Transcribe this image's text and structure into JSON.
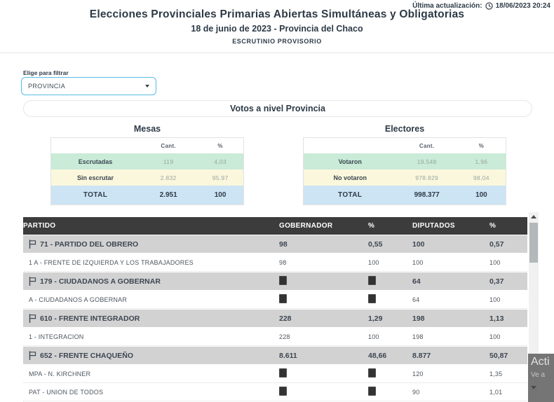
{
  "last_update": {
    "label": "Última actualización:",
    "value": "18/06/2023 20:24"
  },
  "header": {
    "title": "Elecciones Provinciales Primarias Abiertas Simultáneas y Obligatorias",
    "subtitle": "18 de junio de 2023 - Provincia del Chaco",
    "status": "ESCRUTINIO PROVISORIO"
  },
  "filter": {
    "label": "Elige para filtrar",
    "selected_option": "PROVINCIA"
  },
  "section": {
    "title": "Votos a nivel Provincia"
  },
  "summary_tables": [
    {
      "title": "Mesas",
      "columns": [
        "Cant.",
        "%"
      ],
      "rows": [
        {
          "label": "Escrutadas",
          "cant": "119",
          "pct": "4,03",
          "tone": "green"
        },
        {
          "label": "Sin escrutar",
          "cant": "2.832",
          "pct": "95,97",
          "tone": "yellow"
        },
        {
          "label": "TOTAL",
          "cant": "2.951",
          "pct": "100",
          "tone": "total"
        }
      ]
    },
    {
      "title": "Electores",
      "columns": [
        "Cant.",
        "%"
      ],
      "rows": [
        {
          "label": "Votaron",
          "cant": "19.548",
          "pct": "1,96",
          "tone": "green"
        },
        {
          "label": "No votaron",
          "cant": "978.829",
          "pct": "98,04",
          "tone": "yellow"
        },
        {
          "label": "TOTAL",
          "cant": "998.377",
          "pct": "100",
          "tone": "total"
        }
      ]
    }
  ],
  "results_table": {
    "columns": [
      "PARTIDO",
      "GOBERNADOR",
      "%",
      "DIPUTADOS",
      "%"
    ],
    "rows": [
      {
        "type": "party",
        "name": "71 - PARTIDO DEL OBRERO",
        "values": [
          "98",
          "0,55",
          "100",
          "0,57"
        ]
      },
      {
        "type": "list",
        "name": "1 A - FRENTE DE IZQUIERDA Y LOS TRABAJADORES",
        "values": [
          "98",
          "100",
          "100",
          "100"
        ]
      },
      {
        "type": "party",
        "name": "179 - CIUDADANOS A GOBERNAR",
        "values": [
          "■",
          "■",
          "64",
          "0,37"
        ]
      },
      {
        "type": "list",
        "name": "A - CIUDADANOS A GOBERNAR",
        "values": [
          "■",
          "■",
          "64",
          "100"
        ]
      },
      {
        "type": "party",
        "name": "610 - FRENTE INTEGRADOR",
        "values": [
          "228",
          "1,29",
          "198",
          "1,13"
        ]
      },
      {
        "type": "list",
        "name": "1 - INTEGRACION",
        "values": [
          "228",
          "100",
          "198",
          "100"
        ]
      },
      {
        "type": "party",
        "name": "652 - FRENTE CHAQUEÑO",
        "values": [
          "8.611",
          "48,66",
          "8.877",
          "50,87"
        ]
      },
      {
        "type": "list",
        "name": "MPA - N. KIRCHNER",
        "values": [
          "■",
          "■",
          "120",
          "1,35"
        ]
      },
      {
        "type": "list",
        "name": "PAT - UNION DE TODOS",
        "values": [
          "■",
          "■",
          "90",
          "1,01"
        ]
      }
    ]
  },
  "watermark": {
    "line1": "Acti",
    "line2": "Ve a"
  },
  "colors": {
    "accent_border": "#58bce8",
    "row_green": "#c9ebd7",
    "row_yellow": "#fbf7dc",
    "row_total_blue": "#cde4f4",
    "table_header_bg": "#3c3c3c",
    "party_row_bg": "#d2d2d2",
    "text_dark": "#2d3a46"
  }
}
